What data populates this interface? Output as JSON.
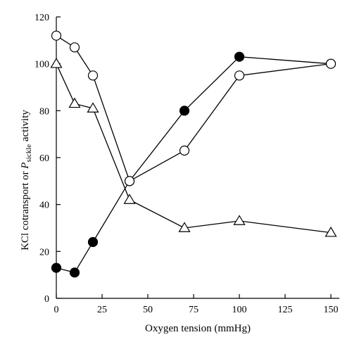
{
  "chart_data": {
    "type": "line",
    "title": "",
    "xlabel": "Oxygen tension (mmHg)",
    "ylabel_main": "KCl cotransport or ",
    "ylabel_p": "P",
    "ylabel_sub": "sickle",
    "ylabel_tail": " activity",
    "xlim": [
      0,
      150
    ],
    "ylim": [
      0,
      120
    ],
    "x_ticks": [
      0,
      25,
      50,
      75,
      100,
      125,
      150
    ],
    "y_ticks": [
      0,
      20,
      40,
      60,
      80,
      100,
      120
    ],
    "grid": false,
    "series": [
      {
        "marker": "filled-circle",
        "x": [
          0,
          10,
          20,
          40,
          70,
          100,
          150
        ],
        "y": [
          13,
          11,
          24,
          50,
          80,
          103,
          100
        ]
      },
      {
        "marker": "open-circle",
        "x": [
          0,
          10,
          20,
          40,
          70,
          100,
          150
        ],
        "y": [
          112,
          107,
          95,
          50,
          63,
          95,
          100
        ]
      },
      {
        "marker": "open-triangle",
        "x": [
          0,
          10,
          20,
          40,
          70,
          100,
          150
        ],
        "y": [
          100,
          83,
          81,
          42,
          30,
          33,
          28
        ]
      }
    ]
  }
}
